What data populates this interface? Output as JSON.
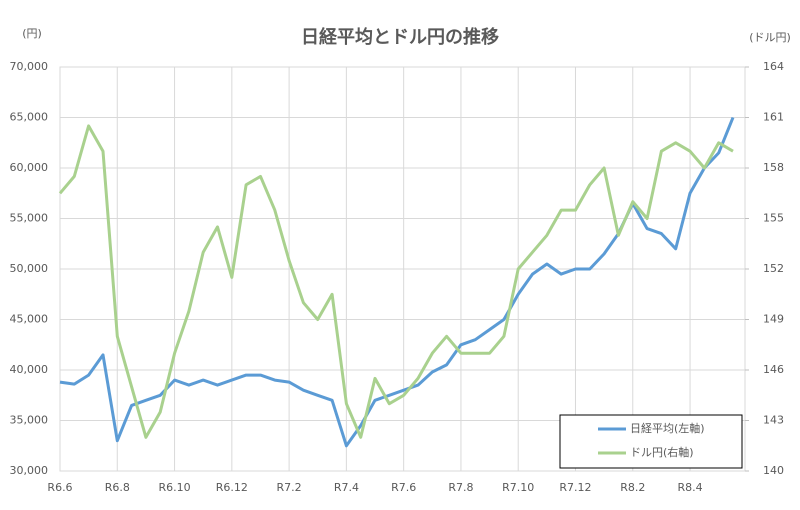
{
  "chart_data": {
    "type": "line",
    "title": "日経平均とドル円の推移",
    "y_unit": "(円)",
    "y2_unit": "(ドル円)",
    "categories": [
      "R6.6",
      null,
      null,
      null,
      "R6.8",
      null,
      null,
      null,
      "R6.10",
      null,
      null,
      null,
      "R6.12",
      null,
      null,
      null,
      "R7.2",
      null,
      null,
      null,
      "R7.4",
      null,
      null,
      null,
      "R7.6",
      null,
      null,
      null,
      "R7.8",
      null,
      null,
      null,
      "R7.10",
      null,
      null,
      null,
      "R7.12",
      null,
      null,
      null,
      "R8.2",
      null,
      null,
      null,
      "R8.4",
      null,
      null,
      null
    ],
    "series": [
      {
        "name": "日経平均(左軸)",
        "color": "#5b9bd5",
        "axis": "y",
        "values": [
          38800,
          38600,
          39500,
          41500,
          33000,
          36500,
          37000,
          37500,
          39000,
          38500,
          39000,
          38500,
          39000,
          39500,
          39500,
          39000,
          38800,
          38000,
          37500,
          37000,
          32500,
          34500,
          37000,
          37500,
          38000,
          38500,
          39800,
          40500,
          42500,
          43000,
          44000,
          45000,
          47500,
          49500,
          50500,
          49500,
          50000,
          50000,
          51500,
          53500,
          56500,
          54000,
          53500,
          52000,
          57500,
          60000,
          61500,
          65000
        ]
      },
      {
        "name": "ドル円(右軸)",
        "color": "#a9d18e",
        "axis": "y2",
        "values": [
          156.5,
          157.5,
          160.5,
          159,
          148,
          145,
          142,
          143.5,
          147,
          149.5,
          153,
          154.5,
          151.5,
          157,
          157.5,
          155.5,
          152.5,
          150,
          149,
          150.5,
          144,
          142,
          145.5,
          144,
          144.5,
          145.5,
          147,
          148,
          147,
          147,
          147,
          148,
          152,
          153,
          154,
          155.5,
          155.5,
          157,
          158,
          154,
          156,
          155,
          159,
          159.5,
          159,
          158,
          159.5,
          159
        ]
      }
    ],
    "ylim": [
      30000,
      70000
    ],
    "yticks": [
      {
        "value": 30000,
        "label": "30,000"
      },
      {
        "value": 35000,
        "label": "35,000"
      },
      {
        "value": 40000,
        "label": "40,000"
      },
      {
        "value": 45000,
        "label": "45,000"
      },
      {
        "value": 50000,
        "label": "50,000"
      },
      {
        "value": 55000,
        "label": "55,000"
      },
      {
        "value": 60000,
        "label": "60,000"
      },
      {
        "value": 65000,
        "label": "65,000"
      },
      {
        "value": 70000,
        "label": "70,000"
      }
    ],
    "y2lim": [
      140,
      164
    ],
    "y2ticks": [
      140,
      143,
      146,
      149,
      152,
      155,
      158,
      161,
      164
    ],
    "grid": true,
    "legend": "lower right"
  }
}
